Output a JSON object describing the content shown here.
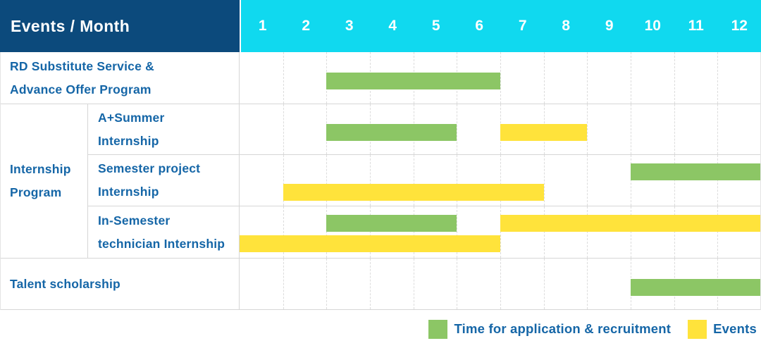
{
  "header": {
    "title": "Events / Month",
    "months": [
      "1",
      "2",
      "3",
      "4",
      "5",
      "6",
      "7",
      "8",
      "9",
      "10",
      "11",
      "12"
    ]
  },
  "colors": {
    "header_navy": "#0c4a7c",
    "header_cyan": "#10d9ef",
    "bar_green": "#8cc665",
    "bar_yellow": "#ffe33b",
    "text_blue": "#1566a7",
    "grid_dashed": "#dcdcdc",
    "row_border": "#d6d6d6"
  },
  "legend": {
    "items": [
      {
        "key": "application",
        "label": "Time for application & recruitment",
        "color": "#8cc665"
      },
      {
        "key": "events",
        "label": "Events",
        "color": "#ffe33b"
      }
    ]
  },
  "chart_data": {
    "type": "bar",
    "variant": "gantt-schedule",
    "x_unit": "month",
    "x_range": [
      1,
      12
    ],
    "title": "Events / Month",
    "group": {
      "label": "Internship Program",
      "label_lines": [
        "Internship",
        "Program"
      ],
      "row_ids": [
        "a-plus-summer-internship",
        "semester-project-internship",
        "in-semester-technician-internship"
      ]
    },
    "rows": [
      {
        "id": "rd-substitute-service",
        "label": "RD Substitute Service & Advance Offer Program",
        "label_lines": [
          "RD Substitute Service &",
          "Advance Offer Program"
        ],
        "in_group": false,
        "bars": [
          {
            "type": "application",
            "color_key": "bar_green",
            "start_month": 3,
            "end_month": 6,
            "line": "center"
          }
        ]
      },
      {
        "id": "a-plus-summer-internship",
        "label": "A+Summer Internship",
        "label_lines": [
          "A+Summer",
          "Internship"
        ],
        "in_group": true,
        "bars": [
          {
            "type": "application",
            "color_key": "bar_green",
            "start_month": 3,
            "end_month": 5,
            "line": "center"
          },
          {
            "type": "events",
            "color_key": "bar_yellow",
            "start_month": 7,
            "end_month": 8,
            "line": "center"
          }
        ]
      },
      {
        "id": "semester-project-internship",
        "label": "Semester project Internship",
        "label_lines": [
          "Semester project",
          "Internship"
        ],
        "in_group": true,
        "bars": [
          {
            "type": "application",
            "color_key": "bar_green",
            "start_month": 10,
            "end_month": 12,
            "line": "upper"
          },
          {
            "type": "events",
            "color_key": "bar_yellow",
            "start_month": 2,
            "end_month": 7,
            "line": "lower"
          }
        ]
      },
      {
        "id": "in-semester-technician-internship",
        "label": "In-Semester technician Internship",
        "label_lines": [
          "In-Semester",
          "technician Internship"
        ],
        "in_group": true,
        "bars": [
          {
            "type": "application",
            "color_key": "bar_green",
            "start_month": 3,
            "end_month": 5,
            "line": "upper"
          },
          {
            "type": "events",
            "color_key": "bar_yellow",
            "start_month": 7,
            "end_month": 12,
            "line": "upper"
          },
          {
            "type": "events",
            "color_key": "bar_yellow",
            "start_month": 1,
            "end_month": 6,
            "line": "lower"
          }
        ]
      },
      {
        "id": "talent-scholarship",
        "label": "Talent scholarship",
        "label_lines": [
          "Talent scholarship"
        ],
        "in_group": false,
        "bars": [
          {
            "type": "application",
            "color_key": "bar_green",
            "start_month": 10,
            "end_month": 12,
            "line": "center"
          }
        ]
      }
    ]
  }
}
